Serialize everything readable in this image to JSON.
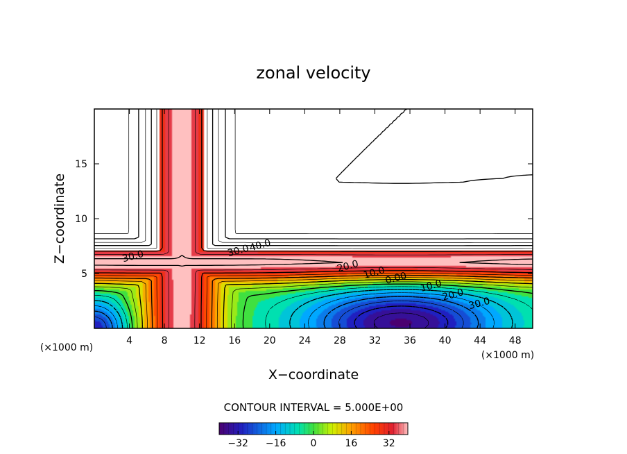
{
  "chart_data": {
    "type": "heatmap",
    "title": "zonal velocity",
    "xlabel": "X−coordinate",
    "ylabel": "Z−coordinate",
    "x_unit": "(×1000 m)",
    "y_unit": "(×1000 m)",
    "xlim": [
      0,
      50
    ],
    "ylim": [
      0,
      20
    ],
    "x_ticks": [
      4,
      8,
      12,
      16,
      20,
      24,
      28,
      32,
      36,
      40,
      44,
      48
    ],
    "y_ticks": [
      5,
      10,
      15
    ],
    "contour_interval_text": "CONTOUR INTERVAL = 5.000E+00",
    "contour_interval": 5.0,
    "contour_labels": [
      {
        "text": "30.0",
        "x": 4.5,
        "y": 6.3
      },
      {
        "text": "30.0",
        "x": 16.5,
        "y": 6.8
      },
      {
        "text": "40.0",
        "x": 19.0,
        "y": 7.3
      },
      {
        "text": "20.0",
        "x": 29.0,
        "y": 5.4
      },
      {
        "text": "10.0",
        "x": 32.0,
        "y": 4.8
      },
      {
        "text": "0.00",
        "x": 34.5,
        "y": 4.3
      },
      {
        "text": "10.0",
        "x": 38.5,
        "y": 3.6
      },
      {
        "text": "20.0",
        "x": 41.0,
        "y": 2.8
      },
      {
        "text": "30.0",
        "x": 44.0,
        "y": 2.0
      }
    ],
    "colorbar": {
      "min": -40,
      "max": 40,
      "ticks": [
        -32,
        -16,
        0,
        16,
        32
      ],
      "tick_labels": [
        "−32",
        "−16",
        "0",
        "16",
        "32"
      ]
    },
    "features": {
      "vertical_jet_center_x": 10,
      "jet_core_max": 40,
      "horizontal_jet_height": 6,
      "negative_core": {
        "x": 35,
        "y": 0.5,
        "min": -38
      }
    }
  }
}
